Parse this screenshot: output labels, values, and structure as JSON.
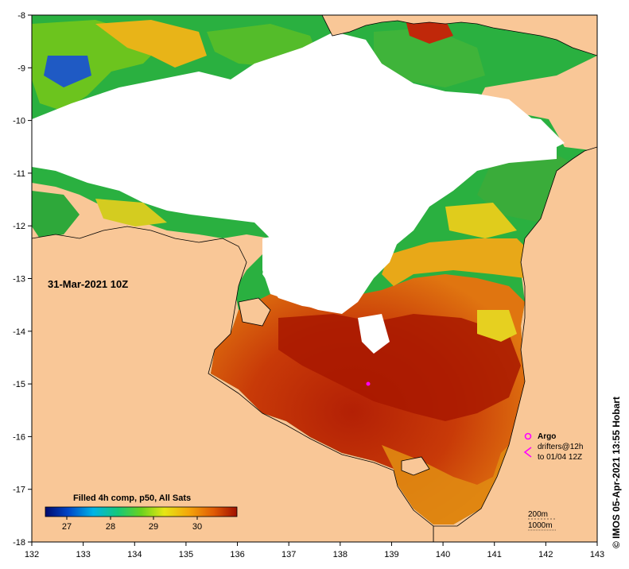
{
  "map": {
    "date_label": "31-Mar-2021 10Z",
    "credit": "© IMOS 05-Apr-2021 13:55 Hobart",
    "lon_ticks": [
      "132",
      "133",
      "134",
      "135",
      "136",
      "137",
      "138",
      "139",
      "140",
      "141",
      "142",
      "143"
    ],
    "lat_ticks": [
      "-8",
      "-9",
      "-10",
      "-11",
      "-12",
      "-13",
      "-14",
      "-15",
      "-16",
      "-17",
      "-18"
    ],
    "colorbar": {
      "title": "Filled 4h comp, p50, All Sats",
      "tick_labels": [
        "27",
        "28",
        "29",
        "30"
      ]
    },
    "legend": {
      "argo": "Argo",
      "drifters": "drifters@12h",
      "drifters_range": "to 01/04 12Z"
    },
    "contours": [
      "200m",
      "1000m"
    ],
    "colors": {
      "land": "#f9c797",
      "cloud": "#ffffff",
      "hot": "#a81800",
      "warm": "#d85b08",
      "mid": "#eb9a16",
      "cool": "#36b244",
      "cold": "#0a2a8c",
      "argo": "#ff00ff"
    }
  }
}
